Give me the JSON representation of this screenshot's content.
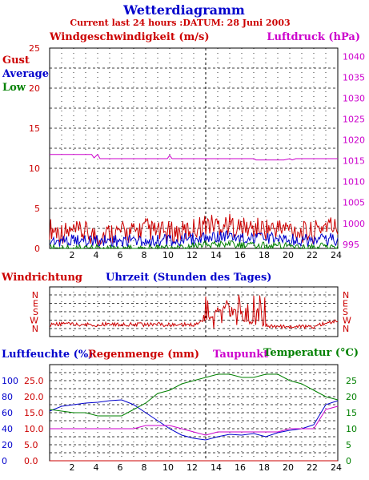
{
  "header": {
    "title": "Wetterdiagramm",
    "subtitle": "Current last 24 hours :DATUM: 28 Juni 2003"
  },
  "colors": {
    "title": "#0000cc",
    "red": "#cc0000",
    "blue": "#0000cc",
    "green": "#008000",
    "magenta": "#cc00cc",
    "grid": "#000000"
  },
  "chart_data": [
    {
      "type": "line",
      "title": "Windgeschwindigkeit (m/s)",
      "y2label": "Luftdruck (hPa)",
      "legend": [
        "Gust",
        "Average",
        "Low"
      ],
      "legend_position": "top-left",
      "xlim": [
        0,
        24
      ],
      "xticks": [
        "2",
        "4",
        "6",
        "8",
        "10",
        "12",
        "14",
        "16",
        "18",
        "20",
        "22",
        "24"
      ],
      "ylim": [
        0,
        25
      ],
      "yticks": [
        "0",
        "5",
        "10",
        "15",
        "20",
        "25"
      ],
      "y2lim": [
        994,
        1042
      ],
      "y2ticks": [
        "995",
        "1000",
        "1005",
        "1010",
        "1015",
        "1020",
        "1025",
        "1030",
        "1035",
        "1040"
      ],
      "grid": true,
      "series": [
        {
          "name": "Gust",
          "color": "#cc0000",
          "x": [
            0,
            1,
            2,
            3,
            4,
            5,
            6,
            7,
            8,
            9,
            10,
            11,
            12,
            13,
            14,
            15,
            16,
            17,
            18,
            19,
            20,
            21,
            22,
            23,
            24
          ],
          "values": [
            2.5,
            2,
            2,
            2,
            1.5,
            2,
            2,
            2,
            2.5,
            2,
            2,
            2,
            2.5,
            3,
            3,
            3,
            2.5,
            2.5,
            2.5,
            2.5,
            2.5,
            2,
            2,
            3,
            2.5
          ]
        },
        {
          "name": "Average",
          "color": "#0000cc",
          "x": [
            0,
            1,
            2,
            3,
            4,
            5,
            6,
            7,
            8,
            9,
            10,
            11,
            12,
            13,
            14,
            15,
            16,
            17,
            18,
            19,
            20,
            21,
            22,
            23,
            24
          ],
          "values": [
            1,
            1,
            1,
            1,
            1,
            1,
            1,
            1,
            1,
            1,
            1,
            1,
            1.2,
            1.5,
            1.5,
            1.5,
            1.2,
            1.2,
            1.2,
            1.2,
            1.2,
            1,
            1,
            1.2,
            1
          ]
        },
        {
          "name": "Low",
          "color": "#008000",
          "x": [
            0,
            1,
            2,
            3,
            4,
            5,
            6,
            7,
            8,
            9,
            10,
            11,
            12,
            13,
            14,
            15,
            16,
            17,
            18,
            19,
            20,
            21,
            22,
            23,
            24
          ],
          "values": [
            0,
            0,
            0,
            0,
            0,
            0,
            0,
            0,
            0,
            0,
            0,
            0,
            0.3,
            0.5,
            0.5,
            0.5,
            0.3,
            0.3,
            0.3,
            0.3,
            0.3,
            0,
            0,
            0.3,
            0
          ]
        },
        {
          "name": "Luftdruck (hPa)",
          "color": "#cc00cc",
          "axis": "right",
          "x": [
            0,
            3.5,
            3.7,
            4,
            4.2,
            9.8,
            10,
            10.2,
            17,
            17.2,
            18.5,
            18.7,
            19.5,
            20,
            20.2,
            20.5,
            24
          ],
          "values": [
            1016.5,
            1016.5,
            1015.7,
            1016.5,
            1015.5,
            1015.5,
            1016.3,
            1015.5,
            1015.5,
            1015.2,
            1015.2,
            1015.2,
            1015.2,
            1015.5,
            1015.2,
            1015.5,
            1015.5
          ]
        }
      ]
    },
    {
      "type": "line",
      "title": "Windrichtung",
      "xlabel": "Uhrzeit (Stunden des Tages)",
      "yticks": [
        "N",
        "W",
        "S",
        "E",
        "N"
      ],
      "ylim": [
        0,
        360
      ],
      "xlim": [
        0,
        24
      ],
      "grid": true,
      "series": [
        {
          "name": "Windrichtung",
          "color": "#cc0000",
          "x": [
            0,
            1,
            2,
            3,
            4,
            5,
            6,
            7,
            8,
            9,
            10,
            11,
            12,
            13,
            14,
            15,
            16,
            17,
            18,
            19,
            20,
            21,
            22,
            23,
            24
          ],
          "values": [
            40,
            50,
            45,
            45,
            40,
            50,
            45,
            45,
            40,
            45,
            40,
            45,
            40,
            90,
            180,
            270,
            90,
            60,
            30,
            20,
            20,
            20,
            20,
            60,
            90
          ]
        }
      ]
    },
    {
      "type": "line",
      "titles": [
        "Luftfeuchte (%)",
        "Regenmenge (mm)",
        "Taupunkt",
        "Temperatur (°C)"
      ],
      "xlim": [
        0,
        24
      ],
      "xticks": [
        "2",
        "4",
        "6",
        "8",
        "10",
        "12",
        "14",
        "16",
        "18",
        "20",
        "22",
        "24"
      ],
      "y_humidity": {
        "ylim": [
          0,
          120
        ],
        "ticks": [
          "0",
          "20",
          "40",
          "60",
          "80",
          "100"
        ]
      },
      "y_rain": {
        "ylim": [
          0,
          30
        ],
        "ticks": [
          "0.0",
          "5.0",
          "10.0",
          "15.0",
          "20.0",
          "25.0"
        ]
      },
      "y_temp": {
        "ylim": [
          0,
          30
        ],
        "ticks": [
          "0",
          "5",
          "10",
          "15",
          "20",
          "25"
        ]
      },
      "grid": true,
      "series": [
        {
          "name": "Luftfeuchte (%)",
          "color": "#0000cc",
          "axis": "humidity",
          "x": [
            0,
            1,
            2,
            3,
            4,
            5,
            6,
            7,
            8,
            9,
            10,
            11,
            12,
            13,
            14,
            15,
            16,
            17,
            18,
            19,
            20,
            21,
            22,
            23,
            24
          ],
          "values": [
            62,
            68,
            70,
            72,
            73,
            75,
            76,
            70,
            60,
            50,
            40,
            32,
            28,
            26,
            30,
            33,
            32,
            34,
            30,
            35,
            38,
            40,
            45,
            70,
            75
          ]
        },
        {
          "name": "Regenmenge (mm)",
          "color": "#cc0000",
          "axis": "rain",
          "x": [
            0,
            6,
            12,
            18,
            24
          ],
          "values": [
            0,
            0,
            0,
            0,
            0
          ]
        },
        {
          "name": "Taupunkt",
          "color": "#cc00cc",
          "axis": "temp",
          "x": [
            0,
            1,
            2,
            3,
            4,
            5,
            6,
            7,
            8,
            9,
            10,
            11,
            12,
            13,
            14,
            15,
            16,
            17,
            18,
            19,
            20,
            21,
            22,
            23,
            24
          ],
          "values": [
            10,
            10,
            10,
            10,
            10,
            10,
            10,
            10,
            11,
            11,
            11,
            10,
            9,
            8,
            9,
            9,
            9,
            9,
            9,
            9,
            10,
            10,
            10,
            16,
            17
          ]
        },
        {
          "name": "Temperatur (°C)",
          "color": "#008000",
          "axis": "temp",
          "x": [
            0,
            1,
            2,
            3,
            4,
            5,
            6,
            7,
            8,
            9,
            10,
            11,
            12,
            13,
            14,
            15,
            16,
            17,
            18,
            19,
            20,
            21,
            22,
            23,
            24
          ],
          "values": [
            16,
            15.5,
            15,
            15,
            14,
            14,
            14,
            16,
            18,
            21,
            22,
            24,
            25,
            26,
            27,
            27,
            26,
            26,
            27,
            27,
            25,
            24,
            22,
            20,
            19
          ]
        }
      ]
    }
  ]
}
